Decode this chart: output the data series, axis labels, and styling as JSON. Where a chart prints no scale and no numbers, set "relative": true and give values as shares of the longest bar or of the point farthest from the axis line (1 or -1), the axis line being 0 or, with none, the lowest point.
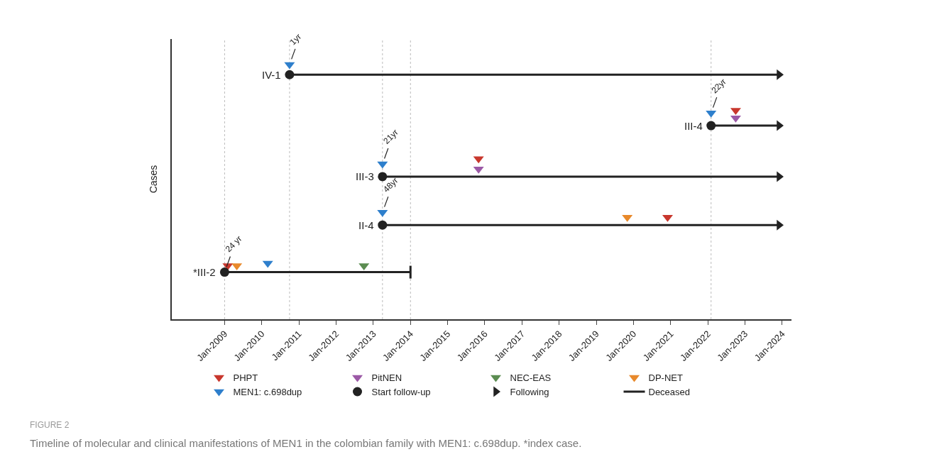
{
  "chart_data": {
    "type": "scatter",
    "relative": true,
    "ylabel": "Cases",
    "xlim": [
      "2007-08",
      "2024-04"
    ],
    "xticks": [
      {
        "value": "2009-01",
        "label": "Jan-2009"
      },
      {
        "value": "2010-01",
        "label": "Jan-2010"
      },
      {
        "value": "2011-01",
        "label": "Jan-2011"
      },
      {
        "value": "2012-01",
        "label": "Jan-2012"
      },
      {
        "value": "2013-01",
        "label": "Jan-2013"
      },
      {
        "value": "2014-01",
        "label": "Jan-2014"
      },
      {
        "value": "2015-01",
        "label": "Jan-2015"
      },
      {
        "value": "2016-01",
        "label": "Jan-2016"
      },
      {
        "value": "2017-01",
        "label": "Jan-2017"
      },
      {
        "value": "2018-01",
        "label": "Jan-2018"
      },
      {
        "value": "2019-01",
        "label": "Jan-2019"
      },
      {
        "value": "2020-01",
        "label": "Jan-2020"
      },
      {
        "value": "2021-01",
        "label": "Jan-2021"
      },
      {
        "value": "2022-01",
        "label": "Jan-2022"
      },
      {
        "value": "2023-01",
        "label": "Jan-2023"
      },
      {
        "value": "2024-01",
        "label": "Jan-2024"
      }
    ],
    "legend": "bottom",
    "series": [
      {
        "type": "line",
        "color": "#222222",
        "x": [
          "2009-01",
          "2014-01"
        ],
        "values": [
          0.185,
          0.185
        ]
      },
      {
        "type": "line",
        "color": "#222222",
        "x": [
          "2013-04",
          "2023-12"
        ],
        "values": [
          0.37,
          0.37
        ]
      },
      {
        "type": "line",
        "color": "#222222",
        "x": [
          "2013-04",
          "2023-12"
        ],
        "values": [
          0.56,
          0.56
        ]
      },
      {
        "type": "line",
        "color": "#222222",
        "x": [
          "2022-02",
          "2023-12"
        ],
        "values": [
          0.76,
          0.76
        ]
      },
      {
        "type": "line",
        "color": "#222222",
        "x": [
          "2010-10",
          "2023-12"
        ],
        "values": [
          0.96,
          0.96
        ]
      },
      {
        "name": "PHPT",
        "marker": "triangle-down",
        "color": "#c8372d",
        "x": [
          "2009-02",
          "2015-11",
          "2020-12",
          "2022-10"
        ],
        "values": [
          0.21,
          0.63,
          0.4,
          0.82
        ]
      },
      {
        "name": "PitNEN",
        "marker": "triangle-down",
        "color": "#9b59a6",
        "x": [
          "2015-11",
          "2022-10"
        ],
        "values": [
          0.59,
          0.79
        ]
      },
      {
        "name": "NEC-EAS",
        "marker": "triangle-down",
        "color": "#5b8c51",
        "x": [
          "2012-10"
        ],
        "values": [
          0.21
        ]
      },
      {
        "name": "DP-NET",
        "marker": "triangle-down",
        "color": "#e8892b",
        "x": [
          "2009-05",
          "2019-11"
        ],
        "values": [
          0.21,
          0.4
        ]
      },
      {
        "name": "MEN1: c.698dup",
        "marker": "triangle-down",
        "color": "#2e7fcc",
        "x": [
          "2010-03",
          "2013-04",
          "2013-04",
          "2022-02",
          "2010-10"
        ],
        "values": [
          0.22,
          0.42,
          0.61,
          0.81,
          1.0
        ]
      },
      {
        "name": "Start follow-up",
        "marker": "circle",
        "color": "#222222",
        "x": [
          "2009-01",
          "2013-04",
          "2013-04",
          "2022-02",
          "2010-10"
        ],
        "values": [
          0.185,
          0.37,
          0.56,
          0.76,
          0.96
        ]
      },
      {
        "name": "Following",
        "marker": "triangle-right",
        "color": "#222222",
        "x": [
          "2023-12",
          "2023-12",
          "2023-12",
          "2023-12"
        ],
        "values": [
          0.37,
          0.56,
          0.76,
          0.96
        ]
      },
      {
        "name": "Deceased",
        "type": "line",
        "color": "#222222",
        "x": [
          "2014-01",
          "2014-01"
        ],
        "values": [
          0.16,
          0.21
        ]
      }
    ],
    "ref_lines": [
      {
        "axis": "x",
        "value": "2009-01",
        "color": "#bbbbbb",
        "line_style": "dotted"
      },
      {
        "axis": "x",
        "value": "2010-10",
        "color": "#bbbbbb",
        "line_style": "dotted"
      },
      {
        "axis": "x",
        "value": "2013-04",
        "color": "#bbbbbb",
        "line_style": "dotted"
      },
      {
        "axis": "x",
        "value": "2014-01",
        "color": "#bbbbbb",
        "line_style": "dotted"
      },
      {
        "axis": "x",
        "value": "2022-02",
        "color": "#bbbbbb",
        "line_style": "dotted"
      }
    ],
    "annotations": [
      {
        "text": "*III-2",
        "x": "2009-01",
        "y": 0.185
      },
      {
        "text": "II-4",
        "x": "2013-04",
        "y": 0.37
      },
      {
        "text": "III-3",
        "x": "2013-04",
        "y": 0.56
      },
      {
        "text": "III-4",
        "x": "2022-02",
        "y": 0.76
      },
      {
        "text": "IV-1",
        "x": "2010-10",
        "y": 0.96
      },
      {
        "text": "24 yr",
        "x": "2009-01",
        "y": 0.185
      },
      {
        "text": "1yr",
        "x": "2010-10",
        "y": 1.0
      },
      {
        "text": "21yr",
        "x": "2013-04",
        "y": 0.61
      },
      {
        "text": "48yr",
        "x": "2013-04",
        "y": 0.42
      },
      {
        "text": "22yr",
        "x": "2022-02",
        "y": 0.81
      },
      "FIGURE 2",
      "Timeline of molecular and clinical manifestations of MEN1 in the colombian family with MEN1: c.698dup. *index case."
    ]
  }
}
